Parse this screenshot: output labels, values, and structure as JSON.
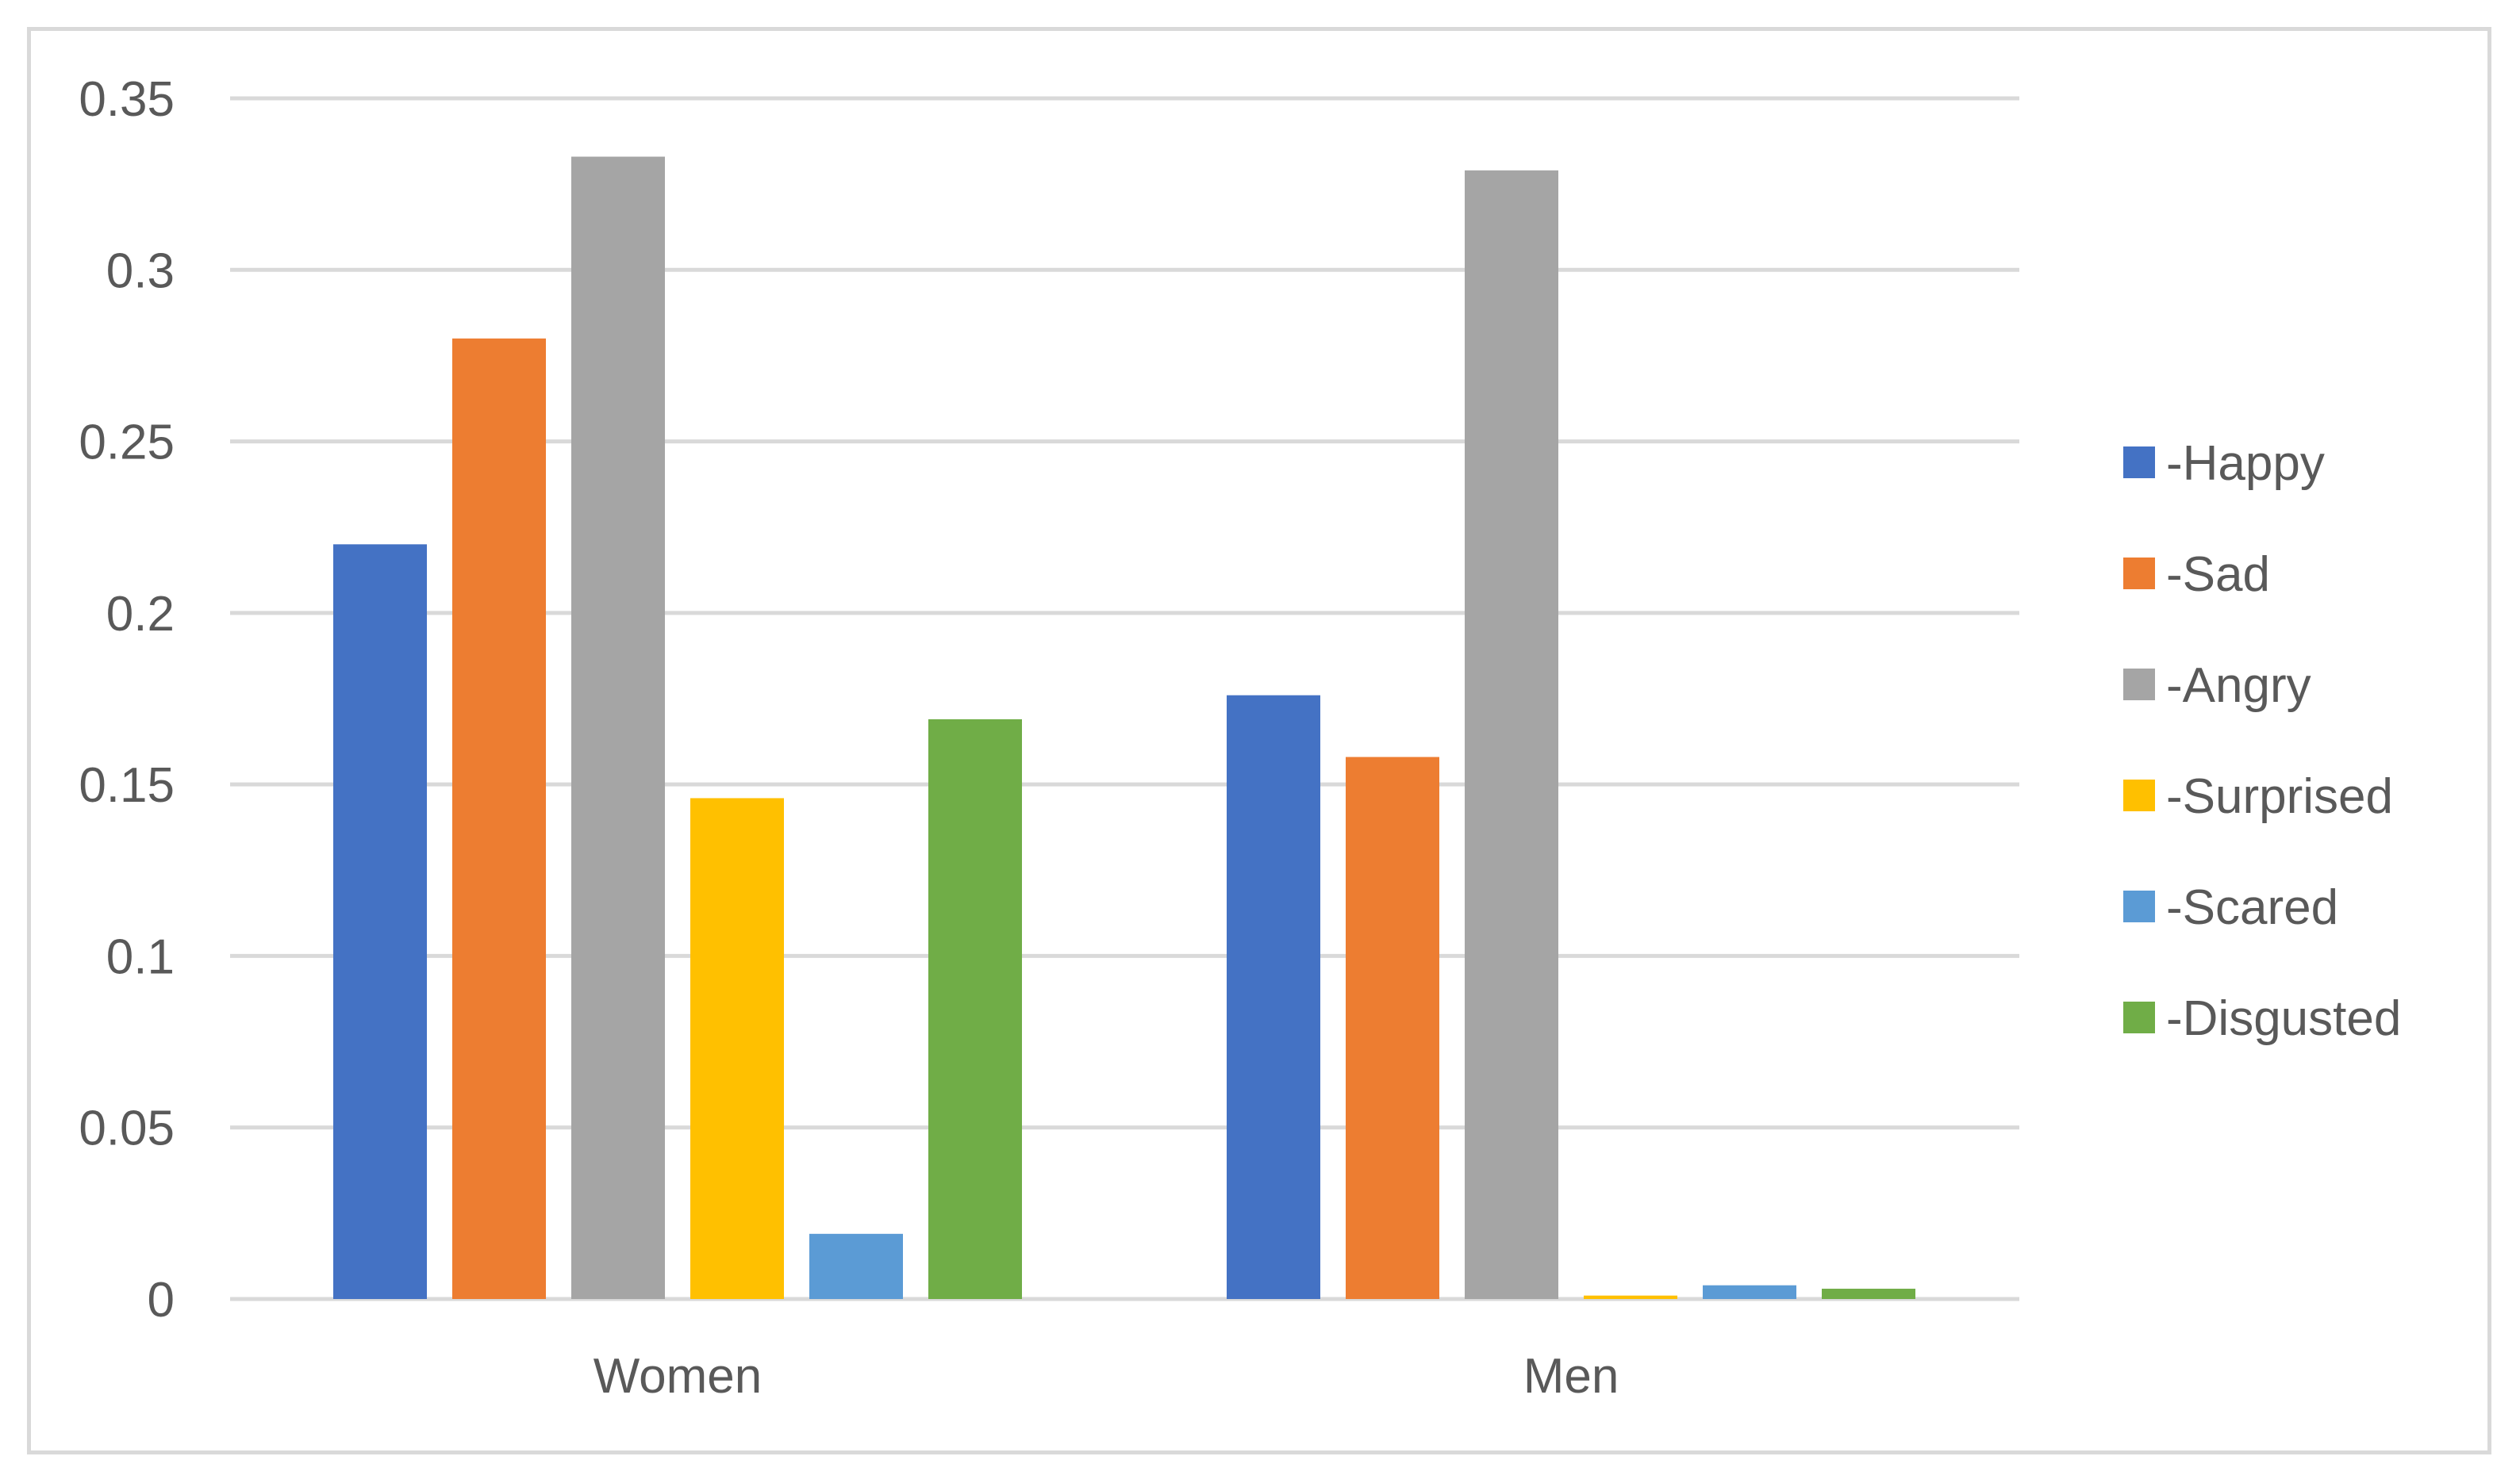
{
  "chart_data": {
    "type": "bar",
    "categories": [
      "Women",
      "Men"
    ],
    "series": [
      {
        "name": "-Happy",
        "color": "#4472C4",
        "values": [
          0.22,
          0.176
        ]
      },
      {
        "name": "-Sad",
        "color": "#ED7D31",
        "values": [
          0.28,
          0.158
        ]
      },
      {
        "name": "-Angry",
        "color": "#A5A5A5",
        "values": [
          0.333,
          0.329
        ]
      },
      {
        "name": "-Surprised",
        "color": "#FFC000",
        "values": [
          0.146,
          0.001
        ]
      },
      {
        "name": "-Scared",
        "color": "#5B9BD5",
        "values": [
          0.019,
          0.004
        ]
      },
      {
        "name": "-Disgusted",
        "color": "#70AD47",
        "values": [
          0.169,
          0.003
        ]
      }
    ],
    "y_ticks": [
      "0",
      "0.05",
      "0.1",
      "0.15",
      "0.2",
      "0.25",
      "0.3",
      "0.35"
    ],
    "ylim": [
      0,
      0.35
    ],
    "grid": true,
    "legend_position": "right",
    "gridline_color": "#d9d9d9",
    "title": "",
    "xlabel": "",
    "ylabel": ""
  }
}
